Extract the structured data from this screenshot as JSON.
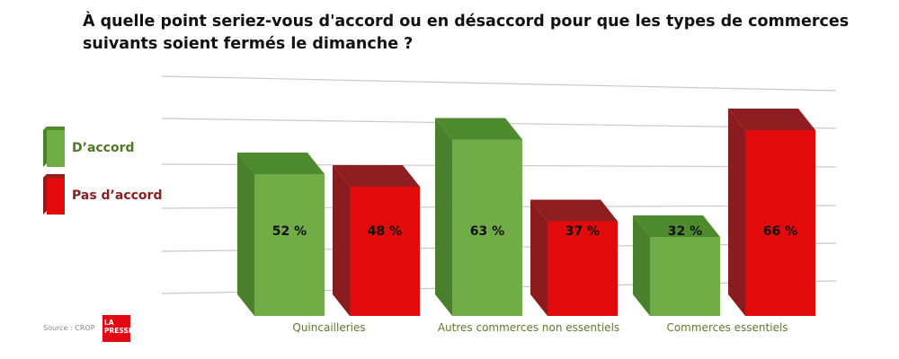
{
  "title": "À quelle point seriez-vous d'accord ou en désaccord pour que les types de commerces suivants soient fermés le dimanche ?",
  "source": "Source : CROP",
  "logo": {
    "line1": "LA",
    "line2": "PRESSE"
  },
  "chart_data": {
    "type": "bar",
    "title": "À quelle point seriez-vous d'accord ou en désaccord pour que les types de commerces suivants soient fermés le dimanche ?",
    "categories": [
      "Quincailleries",
      "Autres commerces non essentiels",
      "Commerces essentiels"
    ],
    "series": [
      {
        "name": "D’accord",
        "values": [
          52,
          63,
          32
        ],
        "labels": [
          "52 %",
          "63 %",
          "32 %"
        ],
        "color": "#70ad47",
        "top_color": "#4e8a2e",
        "side_color": "#4a7f2b",
        "legend_text_color": "#4f7a25"
      },
      {
        "name": "Pas d’accord",
        "values": [
          48,
          37,
          66
        ],
        "labels": [
          "48 %",
          "37 %",
          "66 %"
        ],
        "color": "#e20a0a",
        "top_color": "#8f1e22",
        "side_color": "#8a1c20",
        "legend_text_color": "#8b1e21"
      }
    ],
    "ylim": [
      0,
      70
    ],
    "grid": true,
    "legend_position": "left",
    "category_label_color": "#5d7a2a"
  }
}
